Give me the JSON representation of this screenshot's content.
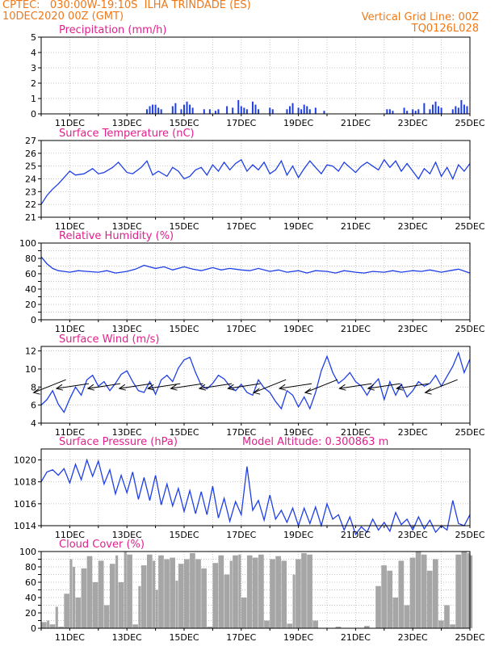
{
  "header": {
    "line1_left": "CPTEC:   030:00W-19:10S  ILHA TRINDADE (ES)",
    "line2_left": "10DEC2020 00Z (GMT)",
    "line1_right": "Vertical Grid Line: 00Z",
    "line2_right": "TQ0126L028"
  },
  "x_axis": {
    "tick_labels": [
      "11DEC",
      "13DEC",
      "15DEC",
      "17DEC",
      "19DEC",
      "21DEC",
      "23DEC",
      "25DEC"
    ],
    "tick_days": [
      11,
      13,
      15,
      17,
      19,
      21,
      23,
      25
    ],
    "range_days": [
      10,
      25
    ],
    "vertical_grid": "00Z daily"
  },
  "colors": {
    "header": "#f07818",
    "title": "#e0208c",
    "line": "#1f3fe6",
    "bars": "#1f3fe6",
    "cloud": "#a6a6a6",
    "arrow": "#000000",
    "grid": "#b0b0b0"
  },
  "chart_data": [
    {
      "type": "bar",
      "title": "Precipitation (mm/h)",
      "ylim": [
        0,
        5
      ],
      "yticks": [
        0,
        1,
        2,
        3,
        4,
        5
      ],
      "series": [
        {
          "name": "Precipitation",
          "x_days": [
            13.7,
            13.8,
            13.9,
            14.0,
            14.1,
            14.2,
            14.6,
            14.7,
            14.9,
            15.0,
            15.1,
            15.2,
            15.3,
            15.7,
            15.9,
            16.1,
            16.2,
            16.5,
            16.7,
            16.9,
            17.0,
            17.1,
            17.2,
            17.4,
            17.5,
            17.6,
            18.0,
            18.1,
            18.6,
            18.7,
            18.8,
            19.0,
            19.1,
            19.2,
            19.3,
            19.4,
            19.6,
            19.9,
            22.1,
            22.2,
            22.3,
            22.7,
            22.8,
            23.0,
            23.1,
            23.2,
            23.4,
            23.6,
            23.7,
            23.8,
            23.9,
            24.0,
            24.4,
            24.5,
            24.6,
            24.7,
            24.8,
            24.9
          ],
          "values": [
            0.3,
            0.5,
            0.6,
            0.6,
            0.4,
            0.3,
            0.5,
            0.7,
            0.3,
            0.6,
            0.8,
            0.6,
            0.4,
            0.3,
            0.3,
            0.2,
            0.3,
            0.5,
            0.4,
            0.9,
            0.5,
            0.4,
            0.3,
            0.8,
            0.6,
            0.3,
            0.4,
            0.3,
            0.3,
            0.5,
            0.7,
            0.4,
            0.3,
            0.6,
            0.5,
            0.3,
            0.4,
            0.2,
            0.3,
            0.3,
            0.2,
            0.4,
            0.2,
            0.3,
            0.2,
            0.3,
            0.7,
            0.3,
            0.6,
            0.8,
            0.5,
            0.4,
            0.3,
            0.5,
            0.4,
            0.9,
            0.6,
            0.5
          ]
        }
      ]
    },
    {
      "type": "line",
      "title": "Surface Temperature (nC)",
      "ylim": [
        21,
        27
      ],
      "yticks": [
        21,
        22,
        23,
        24,
        25,
        26,
        27
      ],
      "series": [
        {
          "name": "Surface Temperature",
          "x_days": [
            10.0,
            10.2,
            10.4,
            10.6,
            10.8,
            11.0,
            11.2,
            11.5,
            11.8,
            12.0,
            12.2,
            12.5,
            12.7,
            13.0,
            13.2,
            13.5,
            13.7,
            13.9,
            14.1,
            14.4,
            14.6,
            14.8,
            15.0,
            15.2,
            15.4,
            15.6,
            15.8,
            16.0,
            16.2,
            16.4,
            16.6,
            16.8,
            17.0,
            17.2,
            17.4,
            17.6,
            17.8,
            18.0,
            18.2,
            18.4,
            18.6,
            18.8,
            19.0,
            19.2,
            19.4,
            19.6,
            19.8,
            20.0,
            20.2,
            20.4,
            20.6,
            20.8,
            21.0,
            21.2,
            21.4,
            21.6,
            21.8,
            22.0,
            22.2,
            22.4,
            22.6,
            22.8,
            23.0,
            23.2,
            23.4,
            23.6,
            23.8,
            24.0,
            24.2,
            24.4,
            24.6,
            24.8,
            25.0
          ],
          "values": [
            22.0,
            22.7,
            23.2,
            23.6,
            24.1,
            24.6,
            24.3,
            24.4,
            24.8,
            24.4,
            24.5,
            24.9,
            25.3,
            24.5,
            24.4,
            24.9,
            25.4,
            24.3,
            24.6,
            24.2,
            24.9,
            24.6,
            24.0,
            24.2,
            24.7,
            24.9,
            24.3,
            25.1,
            24.6,
            25.3,
            24.7,
            25.2,
            25.5,
            24.6,
            25.1,
            24.7,
            25.3,
            24.4,
            24.7,
            25.4,
            24.3,
            25.0,
            24.1,
            24.8,
            25.4,
            24.9,
            24.4,
            25.1,
            25.0,
            24.6,
            25.3,
            24.9,
            24.5,
            25.0,
            25.3,
            25.0,
            24.7,
            25.5,
            24.9,
            25.4,
            24.6,
            25.2,
            24.6,
            24.0,
            24.8,
            24.4,
            25.3,
            24.2,
            24.9,
            24.0,
            25.1,
            24.6,
            25.2
          ]
        }
      ]
    },
    {
      "type": "line",
      "title": "Relative Humidity (%)",
      "ylim": [
        0,
        100
      ],
      "yticks": [
        0,
        10,
        20,
        30,
        40,
        50,
        60,
        70,
        80,
        90,
        100
      ],
      "ytick_labels": [
        0,
        20,
        40,
        60,
        80,
        100
      ],
      "series": [
        {
          "name": "Relative Humidity",
          "x_days": [
            10.0,
            10.2,
            10.4,
            10.6,
            10.8,
            11.0,
            11.3,
            11.6,
            12.0,
            12.3,
            12.6,
            13.0,
            13.3,
            13.6,
            14.0,
            14.3,
            14.6,
            15.0,
            15.3,
            15.6,
            16.0,
            16.3,
            16.6,
            17.0,
            17.3,
            17.6,
            18.0,
            18.3,
            18.6,
            19.0,
            19.3,
            19.6,
            20.0,
            20.3,
            20.6,
            21.0,
            21.3,
            21.6,
            22.0,
            22.3,
            22.6,
            23.0,
            23.3,
            23.6,
            24.0,
            24.3,
            24.6,
            25.0
          ],
          "values": [
            82,
            73,
            67,
            64,
            63,
            62,
            64,
            63,
            62,
            64,
            61,
            63,
            66,
            71,
            67,
            69,
            65,
            69,
            66,
            64,
            68,
            65,
            67,
            65,
            64,
            67,
            63,
            65,
            62,
            64,
            61,
            64,
            63,
            61,
            64,
            62,
            61,
            63,
            62,
            64,
            62,
            64,
            63,
            65,
            62,
            64,
            66,
            61
          ]
        }
      ]
    },
    {
      "type": "line",
      "title": "Surface Wind (m/s)",
      "ylim": [
        4,
        12.5
      ],
      "yticks": [
        4,
        6,
        8,
        10,
        12
      ],
      "series": [
        {
          "name": "Surface Wind",
          "x_days": [
            10.0,
            10.2,
            10.4,
            10.6,
            10.8,
            11.0,
            11.2,
            11.4,
            11.6,
            11.8,
            12.0,
            12.2,
            12.4,
            12.6,
            12.8,
            13.0,
            13.2,
            13.4,
            13.6,
            13.8,
            14.0,
            14.2,
            14.4,
            14.6,
            14.8,
            15.0,
            15.2,
            15.4,
            15.6,
            15.8,
            16.0,
            16.2,
            16.4,
            16.6,
            16.8,
            17.0,
            17.2,
            17.4,
            17.6,
            17.8,
            18.0,
            18.2,
            18.4,
            18.6,
            18.8,
            19.0,
            19.2,
            19.4,
            19.6,
            19.8,
            20.0,
            20.2,
            20.4,
            20.6,
            20.8,
            21.0,
            21.2,
            21.4,
            21.6,
            21.8,
            22.0,
            22.2,
            22.4,
            22.6,
            22.8,
            23.0,
            23.2,
            23.4,
            23.6,
            23.8,
            24.0,
            24.2,
            24.4,
            24.6,
            24.8,
            25.0
          ],
          "values": [
            6.0,
            6.6,
            7.6,
            6.1,
            5.2,
            6.7,
            8.0,
            7.1,
            8.8,
            9.3,
            8.1,
            8.6,
            7.6,
            8.4,
            9.4,
            9.8,
            8.6,
            7.6,
            7.4,
            8.6,
            7.2,
            8.8,
            9.3,
            8.6,
            10.1,
            11.0,
            11.3,
            9.6,
            8.2,
            7.8,
            8.4,
            9.3,
            8.9,
            8.1,
            7.6,
            8.3,
            7.4,
            7.1,
            8.8,
            7.9,
            7.4,
            6.4,
            5.6,
            7.6,
            7.1,
            5.8,
            6.9,
            5.6,
            7.4,
            9.8,
            11.4,
            9.6,
            8.4,
            8.9,
            9.6,
            8.6,
            8.1,
            7.1,
            8.2,
            8.9,
            6.6,
            8.6,
            7.1,
            8.3,
            6.9,
            7.6,
            8.6,
            8.1,
            8.4,
            9.3,
            8.1,
            9.2,
            10.3,
            11.8,
            9.6,
            11.1
          ]
        }
      ],
      "wind_vectors": [
        {
          "x_day": 10.3,
          "dir": "southwest"
        },
        {
          "x_day": 11.1,
          "dir": "west"
        },
        {
          "x_day": 12.2,
          "dir": "west"
        },
        {
          "x_day": 13.3,
          "dir": "west"
        },
        {
          "x_day": 14.3,
          "dir": "west"
        },
        {
          "x_day": 15.1,
          "dir": "west"
        },
        {
          "x_day": 16.1,
          "dir": "west"
        },
        {
          "x_day": 17.1,
          "dir": "west"
        },
        {
          "x_day": 18.0,
          "dir": "southwest"
        },
        {
          "x_day": 18.9,
          "dir": "west"
        },
        {
          "x_day": 19.8,
          "dir": "southwest"
        },
        {
          "x_day": 21.0,
          "dir": "west"
        },
        {
          "x_day": 22.0,
          "dir": "west"
        },
        {
          "x_day": 23.0,
          "dir": "west"
        },
        {
          "x_day": 24.0,
          "dir": "southwest"
        }
      ]
    },
    {
      "type": "line",
      "title": "Surface Pressure (hPa)",
      "annotation": "Model Altitude: 0.300863 m",
      "ylim": [
        1014,
        1021
      ],
      "yticks": [
        1014,
        1016,
        1018,
        1020
      ],
      "series": [
        {
          "name": "Surface Pressure",
          "x_days": [
            10.0,
            10.2,
            10.4,
            10.6,
            10.8,
            11.0,
            11.2,
            11.4,
            11.6,
            11.8,
            12.0,
            12.2,
            12.4,
            12.6,
            12.8,
            13.0,
            13.2,
            13.4,
            13.6,
            13.8,
            14.0,
            14.2,
            14.4,
            14.6,
            14.8,
            15.0,
            15.2,
            15.4,
            15.6,
            15.8,
            16.0,
            16.2,
            16.4,
            16.6,
            16.8,
            17.0,
            17.2,
            17.4,
            17.6,
            17.8,
            18.0,
            18.2,
            18.4,
            18.6,
            18.8,
            19.0,
            19.2,
            19.4,
            19.6,
            19.8,
            20.0,
            20.2,
            20.4,
            20.6,
            20.8,
            21.0,
            21.2,
            21.4,
            21.6,
            21.8,
            22.0,
            22.2,
            22.4,
            22.6,
            22.8,
            23.0,
            23.2,
            23.4,
            23.6,
            23.8,
            24.0,
            24.2,
            24.4,
            24.6,
            24.8,
            25.0
          ],
          "values": [
            1018.0,
            1018.9,
            1019.1,
            1018.6,
            1019.2,
            1017.9,
            1019.6,
            1018.2,
            1020.0,
            1018.5,
            1019.9,
            1017.8,
            1019.1,
            1016.9,
            1018.6,
            1017.0,
            1018.9,
            1016.4,
            1018.4,
            1016.3,
            1018.6,
            1015.9,
            1017.8,
            1015.8,
            1017.4,
            1015.3,
            1017.2,
            1015.1,
            1017.1,
            1015.0,
            1017.6,
            1014.7,
            1016.5,
            1014.4,
            1016.2,
            1015.0,
            1019.4,
            1015.4,
            1016.3,
            1014.5,
            1016.8,
            1014.6,
            1015.4,
            1014.3,
            1015.6,
            1014.0,
            1015.6,
            1014.2,
            1015.7,
            1014.0,
            1016.0,
            1014.6,
            1015.0,
            1013.6,
            1014.8,
            1013.2,
            1013.9,
            1013.4,
            1014.6,
            1013.6,
            1014.3,
            1013.5,
            1015.2,
            1014.1,
            1014.6,
            1013.6,
            1014.8,
            1013.7,
            1014.5,
            1013.4,
            1014.0,
            1013.6,
            1016.3,
            1014.2,
            1014.0,
            1015.0
          ]
        }
      ]
    },
    {
      "type": "area",
      "title": "Cloud Cover (%)",
      "ylim": [
        0,
        100
      ],
      "yticks": [
        0,
        10,
        20,
        30,
        40,
        50,
        60,
        70,
        80,
        90,
        100
      ],
      "ytick_labels": [
        0,
        20,
        40,
        60,
        80,
        100
      ],
      "series": [
        {
          "name": "Cloud Cover",
          "x_days": [
            10.0,
            10.2,
            10.3,
            10.5,
            10.6,
            10.8,
            11.0,
            11.1,
            11.2,
            11.4,
            11.6,
            11.8,
            12.0,
            12.2,
            12.4,
            12.6,
            12.7,
            12.9,
            13.0,
            13.2,
            13.4,
            13.5,
            13.7,
            13.9,
            14.0,
            14.1,
            14.3,
            14.5,
            14.7,
            14.8,
            15.0,
            15.2,
            15.4,
            15.6,
            15.8,
            16.0,
            16.2,
            16.4,
            16.6,
            16.7,
            16.9,
            17.0,
            17.2,
            17.4,
            17.6,
            17.8,
            18.0,
            18.2,
            18.4,
            18.6,
            18.8,
            18.9,
            19.1,
            19.3,
            19.5,
            19.7,
            19.9,
            20.1,
            20.3,
            20.5,
            20.7,
            20.9,
            21.1,
            21.3,
            21.5,
            21.7,
            21.9,
            22.1,
            22.3,
            22.5,
            22.7,
            22.9,
            23.1,
            23.3,
            23.5,
            23.7,
            23.9,
            24.1,
            24.3,
            24.5,
            24.7,
            24.9,
            25.0
          ],
          "values": [
            8,
            10,
            5,
            28,
            2,
            45,
            90,
            80,
            40,
            78,
            94,
            60,
            88,
            30,
            84,
            95,
            60,
            100,
            96,
            5,
            55,
            82,
            96,
            88,
            50,
            95,
            90,
            92,
            62,
            84,
            90,
            98,
            90,
            78,
            2,
            85,
            95,
            70,
            88,
            95,
            96,
            40,
            95,
            92,
            96,
            10,
            90,
            94,
            88,
            6,
            70,
            90,
            98,
            96,
            10,
            0,
            0,
            0,
            2,
            0,
            0,
            0,
            0,
            3,
            0,
            55,
            82,
            75,
            40,
            88,
            30,
            92,
            100,
            96,
            75,
            90,
            10,
            30,
            5,
            96,
            100,
            98,
            95
          ]
        }
      ]
    }
  ]
}
